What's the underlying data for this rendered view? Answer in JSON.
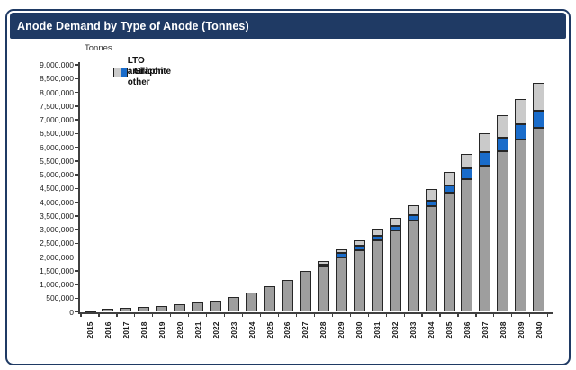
{
  "window": {
    "title": "Anode Demand by Type of Anode (Tonnes)"
  },
  "colors": {
    "header_bg": "#1f3a64",
    "header_text": "#ffffff",
    "card_border": "#1f3a64",
    "bar_outline": "#262626",
    "axis": "#3f3f3f",
    "graphite": "#9e9e9e",
    "silicon": "#1a6cca",
    "lto": "#cacaca"
  },
  "chart_data": {
    "type": "bar",
    "stacked": true,
    "title": "Anode Demand by Type of Anode (Tonnes)",
    "ylabel": "Tonnes",
    "xlabel": "",
    "ylim": [
      0,
      9000000
    ],
    "ytick_step": 500000,
    "grid": false,
    "legend_position": "top-left",
    "categories": [
      "2015",
      "2016",
      "2017",
      "2018",
      "2019",
      "2020",
      "2021",
      "2022",
      "2023",
      "2024",
      "2025",
      "2026",
      "2027",
      "2028",
      "2029",
      "2030",
      "2031",
      "2032",
      "2033",
      "2034",
      "2035",
      "2036",
      "2037",
      "2038",
      "2039",
      "2040"
    ],
    "series": [
      {
        "name": "Graphite",
        "color": "#9e9e9e",
        "values": [
          60000,
          100000,
          140000,
          175000,
          220000,
          285000,
          330000,
          415000,
          550000,
          705000,
          950000,
          1150000,
          1480000,
          1640000,
          1990000,
          2260000,
          2600000,
          2970000,
          3330000,
          3840000,
          4340000,
          4830000,
          5340000,
          5840000,
          6270000,
          6690000
        ]
      },
      {
        "name": "Silicon",
        "color": "#1a6cca",
        "values": [
          0,
          0,
          0,
          0,
          0,
          0,
          0,
          0,
          0,
          0,
          0,
          0,
          0,
          90000,
          145000,
          150000,
          170000,
          165000,
          205000,
          205000,
          280000,
          390000,
          475000,
          490000,
          550000,
          625000
        ]
      },
      {
        "name": "LTO and other",
        "color": "#cacaca",
        "values": [
          0,
          0,
          0,
          0,
          0,
          0,
          0,
          0,
          0,
          0,
          0,
          0,
          0,
          130000,
          150000,
          200000,
          260000,
          275000,
          355000,
          440000,
          475000,
          530000,
          700000,
          820000,
          930000,
          1040000
        ]
      }
    ]
  }
}
